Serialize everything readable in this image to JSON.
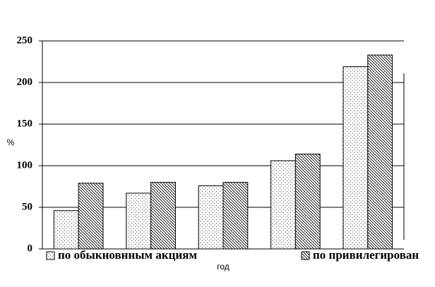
{
  "chart_data": {
    "type": "bar",
    "y_label": "%",
    "x_label": "год",
    "categories": [
      null,
      null,
      null,
      null,
      null
    ],
    "series": [
      {
        "name": "по обыкновнным акциям",
        "color": "#000000",
        "pattern": "dots",
        "values": [
          46,
          67,
          76,
          106,
          219
        ]
      },
      {
        "name": "по привилегирован",
        "color": "#000000",
        "pattern": "hatch",
        "values": [
          79,
          80,
          80,
          114,
          233
        ]
      }
    ],
    "ylim": [
      0,
      250
    ],
    "yticks": [
      0,
      50,
      100,
      150,
      200,
      250
    ],
    "grid": true,
    "legend": "bottom"
  }
}
